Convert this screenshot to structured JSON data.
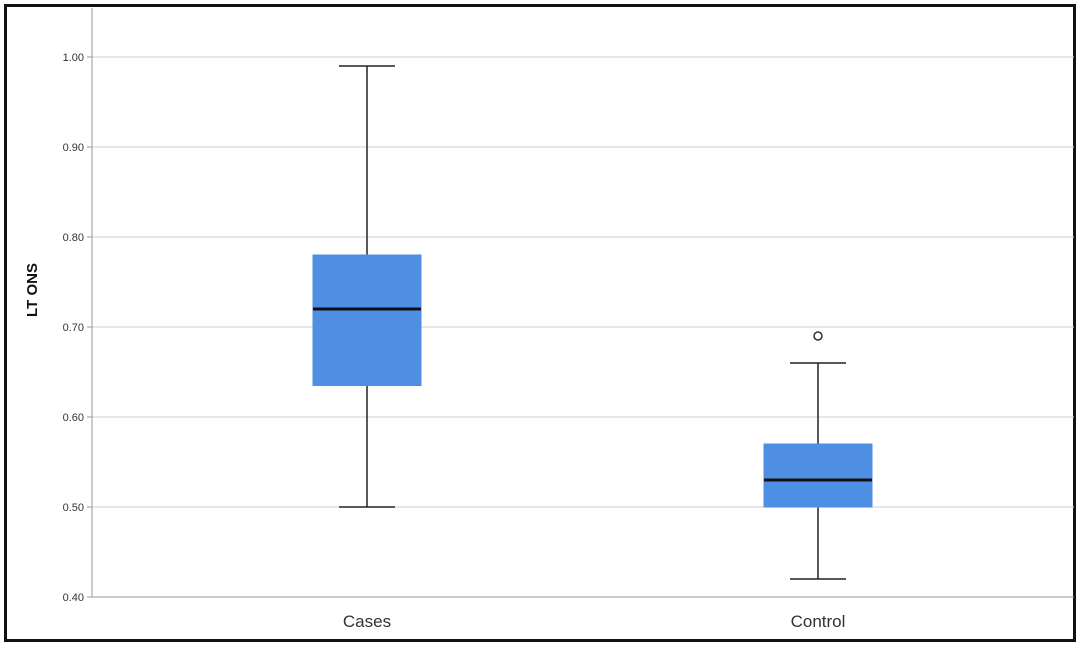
{
  "chart_data": {
    "type": "boxplot",
    "title": "",
    "xlabel": "",
    "ylabel": "LT ONS",
    "ylim": [
      0.4,
      1.04
    ],
    "yticks": [
      0.4,
      0.5,
      0.6,
      0.7,
      0.8,
      0.9,
      1.0
    ],
    "ytick_labels": [
      "0.40",
      "0.50",
      "0.60",
      "0.70",
      "0.80",
      "0.90",
      "1.00"
    ],
    "grid": true,
    "box_color": "#4f8fe3",
    "median_color": "#111111",
    "categories": [
      "Cases",
      "Control"
    ],
    "boxes": [
      {
        "category": "Cases",
        "whisker_low": 0.5,
        "q1": 0.635,
        "median": 0.72,
        "q3": 0.78,
        "whisker_high": 0.99,
        "outliers": []
      },
      {
        "category": "Control",
        "whisker_low": 0.42,
        "q1": 0.5,
        "median": 0.53,
        "q3": 0.57,
        "whisker_high": 0.66,
        "outliers": [
          0.69
        ]
      }
    ]
  }
}
